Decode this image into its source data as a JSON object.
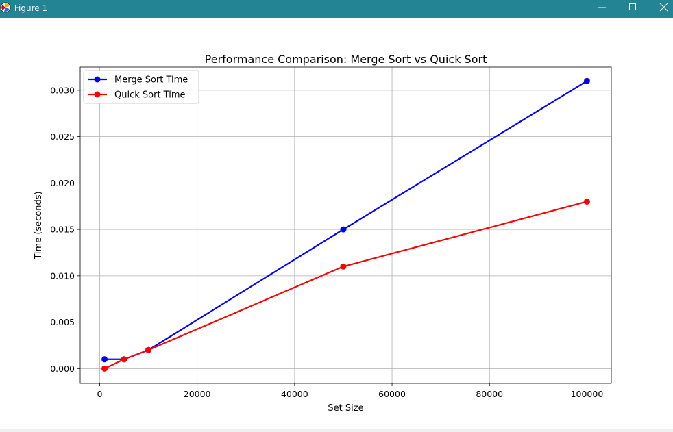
{
  "window": {
    "title": "Figure 1",
    "titlebar_color": "#238593",
    "icons": {
      "app": "matplotlib-figure-icon",
      "minimize": "minimize-icon",
      "maximize": "maximize-icon",
      "close": "close-icon"
    }
  },
  "chart_data": {
    "type": "line",
    "title": "Performance Comparison: Merge Sort vs Quick Sort",
    "xlabel": "Set Size",
    "ylabel": "Time (seconds)",
    "xlim": [
      -4000,
      105000
    ],
    "ylim": [
      -0.0016,
      0.0325
    ],
    "xticks": [
      0,
      20000,
      40000,
      60000,
      80000,
      100000
    ],
    "xtick_labels": [
      "0",
      "20000",
      "40000",
      "60000",
      "80000",
      "100000"
    ],
    "yticks": [
      0.0,
      0.005,
      0.01,
      0.015,
      0.02,
      0.025,
      0.03
    ],
    "ytick_labels": [
      "0.000",
      "0.005",
      "0.010",
      "0.015",
      "0.020",
      "0.025",
      "0.030"
    ],
    "grid": true,
    "legend": "top-left",
    "x": [
      1000,
      5000,
      10000,
      50000,
      100000
    ],
    "series": [
      {
        "name": "Merge Sort Time",
        "color": "#0000ff",
        "marker": "circle",
        "values": [
          0.001,
          0.001,
          0.002,
          0.015,
          0.031
        ]
      },
      {
        "name": "Quick Sort Time",
        "color": "#ff0000",
        "marker": "circle",
        "values": [
          0.0,
          0.001,
          0.002,
          0.011,
          0.018
        ]
      }
    ]
  }
}
